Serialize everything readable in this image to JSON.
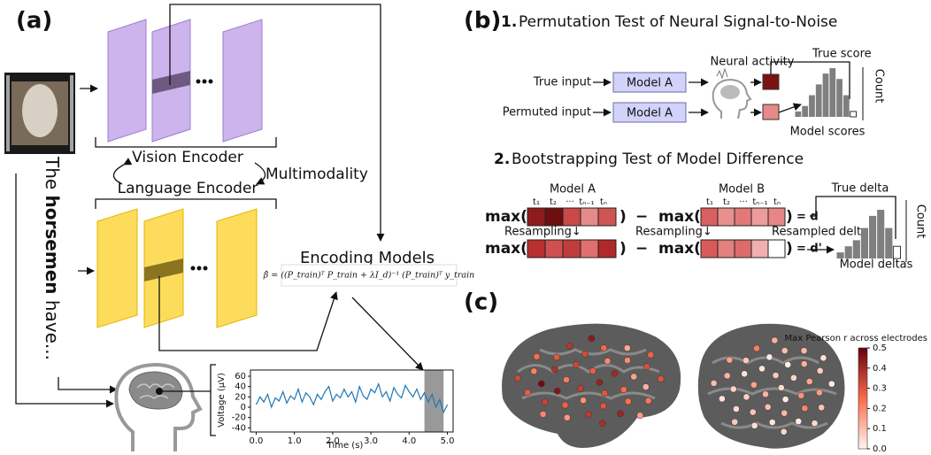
{
  "panel_a": {
    "label": "(a)",
    "sentence": [
      "The",
      "horsemen",
      "have..."
    ],
    "vision_encoder": "Vision Encoder",
    "multimodality": "Multimodality",
    "language_encoder": "Language Encoder",
    "encoding_models": "Encoding Models",
    "formula": "β̂ = ((P_train)ᵀ P_train + λI_d)⁻¹ (P_train)ᵀ y_train",
    "eeg": {
      "type": "line",
      "xlabel": "Time (s)",
      "ylabel": "Voltage (μV)",
      "color": "#1f77b4",
      "x": [
        0,
        0.1,
        0.2,
        0.3,
        0.4,
        0.5,
        0.6,
        0.7,
        0.8,
        0.9,
        1,
        1.1,
        1.2,
        1.3,
        1.4,
        1.5,
        1.6,
        1.7,
        1.8,
        1.9,
        2,
        2.1,
        2.2,
        2.3,
        2.4,
        2.5,
        2.6,
        2.7,
        2.8,
        2.9,
        3,
        3.1,
        3.2,
        3.3,
        3.4,
        3.5,
        3.6,
        3.7,
        3.8,
        3.9,
        4,
        4.1,
        4.2,
        4.3,
        4.4,
        4.5,
        4.6,
        4.7,
        4.8,
        4.9,
        5
      ],
      "values": [
        5,
        20,
        10,
        25,
        0,
        18,
        12,
        30,
        8,
        22,
        15,
        35,
        10,
        28,
        20,
        5,
        25,
        15,
        30,
        40,
        12,
        25,
        18,
        35,
        20,
        30,
        10,
        40,
        22,
        15,
        35,
        28,
        45,
        20,
        30,
        12,
        38,
        25,
        18,
        42,
        30,
        20,
        35,
        15,
        28,
        10,
        25,
        0,
        15,
        -10,
        5
      ],
      "xlim": [
        -0.15,
        5.15
      ],
      "ylim": [
        -48,
        72
      ],
      "xticks": [
        {
          "value": 0,
          "label": "0.0"
        },
        {
          "value": 1,
          "label": "1.0"
        },
        {
          "value": 2,
          "label": "2.0"
        },
        {
          "value": 3,
          "label": "3.0"
        },
        {
          "value": 4,
          "label": "4.0"
        },
        {
          "value": 5,
          "label": "5.0"
        }
      ],
      "yticks": [
        60,
        40,
        20,
        0,
        -20,
        -40
      ],
      "highlight": [
        4.4,
        4.9
      ]
    }
  },
  "panel_b": {
    "label": "(b)",
    "test1": {
      "number": "1.",
      "title": "Permutation Test of Neural Signal-to-Noise",
      "true_input": "True input",
      "permuted_input": "Permuted input",
      "model_boxes": [
        "Model A",
        "Model A"
      ],
      "neural_activity": "Neural activity",
      "true_score": "True score",
      "count": "Count",
      "model_scores": "Model scores",
      "counts": [
        1,
        2,
        4,
        6,
        8,
        9,
        7,
        4,
        1
      ]
    },
    "test2": {
      "number": "2.",
      "title": "Bootstrapping Test of Model Difference",
      "model_a": "Model A",
      "model_b": "Model B",
      "tokens_a": [
        "t₁",
        "t₂",
        "···",
        "tₙ₋₁",
        "tₙ"
      ],
      "tokens_b": [
        "t₁",
        "t₂",
        "···",
        "tₙ₋₁",
        "tₙ"
      ],
      "max_open": "max(",
      "close": ")",
      "minus": "−",
      "eq_d": "= d",
      "eq_d_prime": "= d'",
      "true_delta": "True delta",
      "count": "Count",
      "resampling": [
        "Resampling↓",
        "Resampling↓"
      ],
      "resampled_delta": "Resampled delta",
      "model_deltas": "Model deltas",
      "cells_a": [
        "#8e1b1b",
        "#6e0f0f",
        "#c94848",
        "#e48a8a",
        "#d05454"
      ],
      "cells_b": [
        "#d86060",
        "#e89090",
        "#e27878",
        "#ec9c9c",
        "#e68686"
      ],
      "cells_a2": [
        "#b83030",
        "#d05050",
        "#c03c3c",
        "#e07070",
        "#b02828"
      ],
      "cells_b2": [
        "#d85a5a",
        "#e38080",
        "#dc6c6c",
        "#f0b0b0",
        "#ffffff"
      ],
      "counts": [
        1,
        2,
        3,
        5,
        7,
        8,
        5,
        2
      ]
    }
  },
  "panel_c": {
    "label": "(c)",
    "colorbar_title": "Max Pearson r across electrodes",
    "clim": [
      0,
      0.5
    ],
    "cticks": [
      {
        "value": 0,
        "label": "0.0"
      },
      0.1,
      0.2,
      0.3,
      0.4,
      0.5
    ],
    "left_brain": [
      0.42,
      0.35,
      0.28,
      0.3,
      0.22,
      0.4,
      0.18,
      0.33,
      0.25,
      0.45,
      0.2,
      0.3,
      0.38,
      0.15,
      0.27,
      0.32,
      0.24,
      0.48,
      0.19,
      0.36,
      0.29,
      0.12,
      0.34,
      0.26,
      0.41,
      0.21,
      0.31,
      0.17,
      0.37,
      0.23,
      0.28,
      0.14,
      0.39,
      0.25,
      0.3,
      0.2,
      0.44,
      0.16,
      0.33,
      0.27
    ],
    "right_brain": [
      0.05,
      0.12,
      0.08,
      0.02,
      0.15,
      0.06,
      0.1,
      0.03,
      0.18,
      0.07,
      0.01,
      0.11,
      0.04,
      0.14,
      0.09,
      0.02,
      0.2,
      0.06,
      0.13,
      0.03,
      0.08,
      0.16,
      0.05,
      0.1,
      0.01,
      0.12,
      0.07,
      0.04,
      0.22,
      0.09,
      0.03,
      0.11,
      0.06,
      0.15,
      0.02,
      0.08,
      0.13,
      0.05,
      0.1,
      0.04
    ]
  }
}
